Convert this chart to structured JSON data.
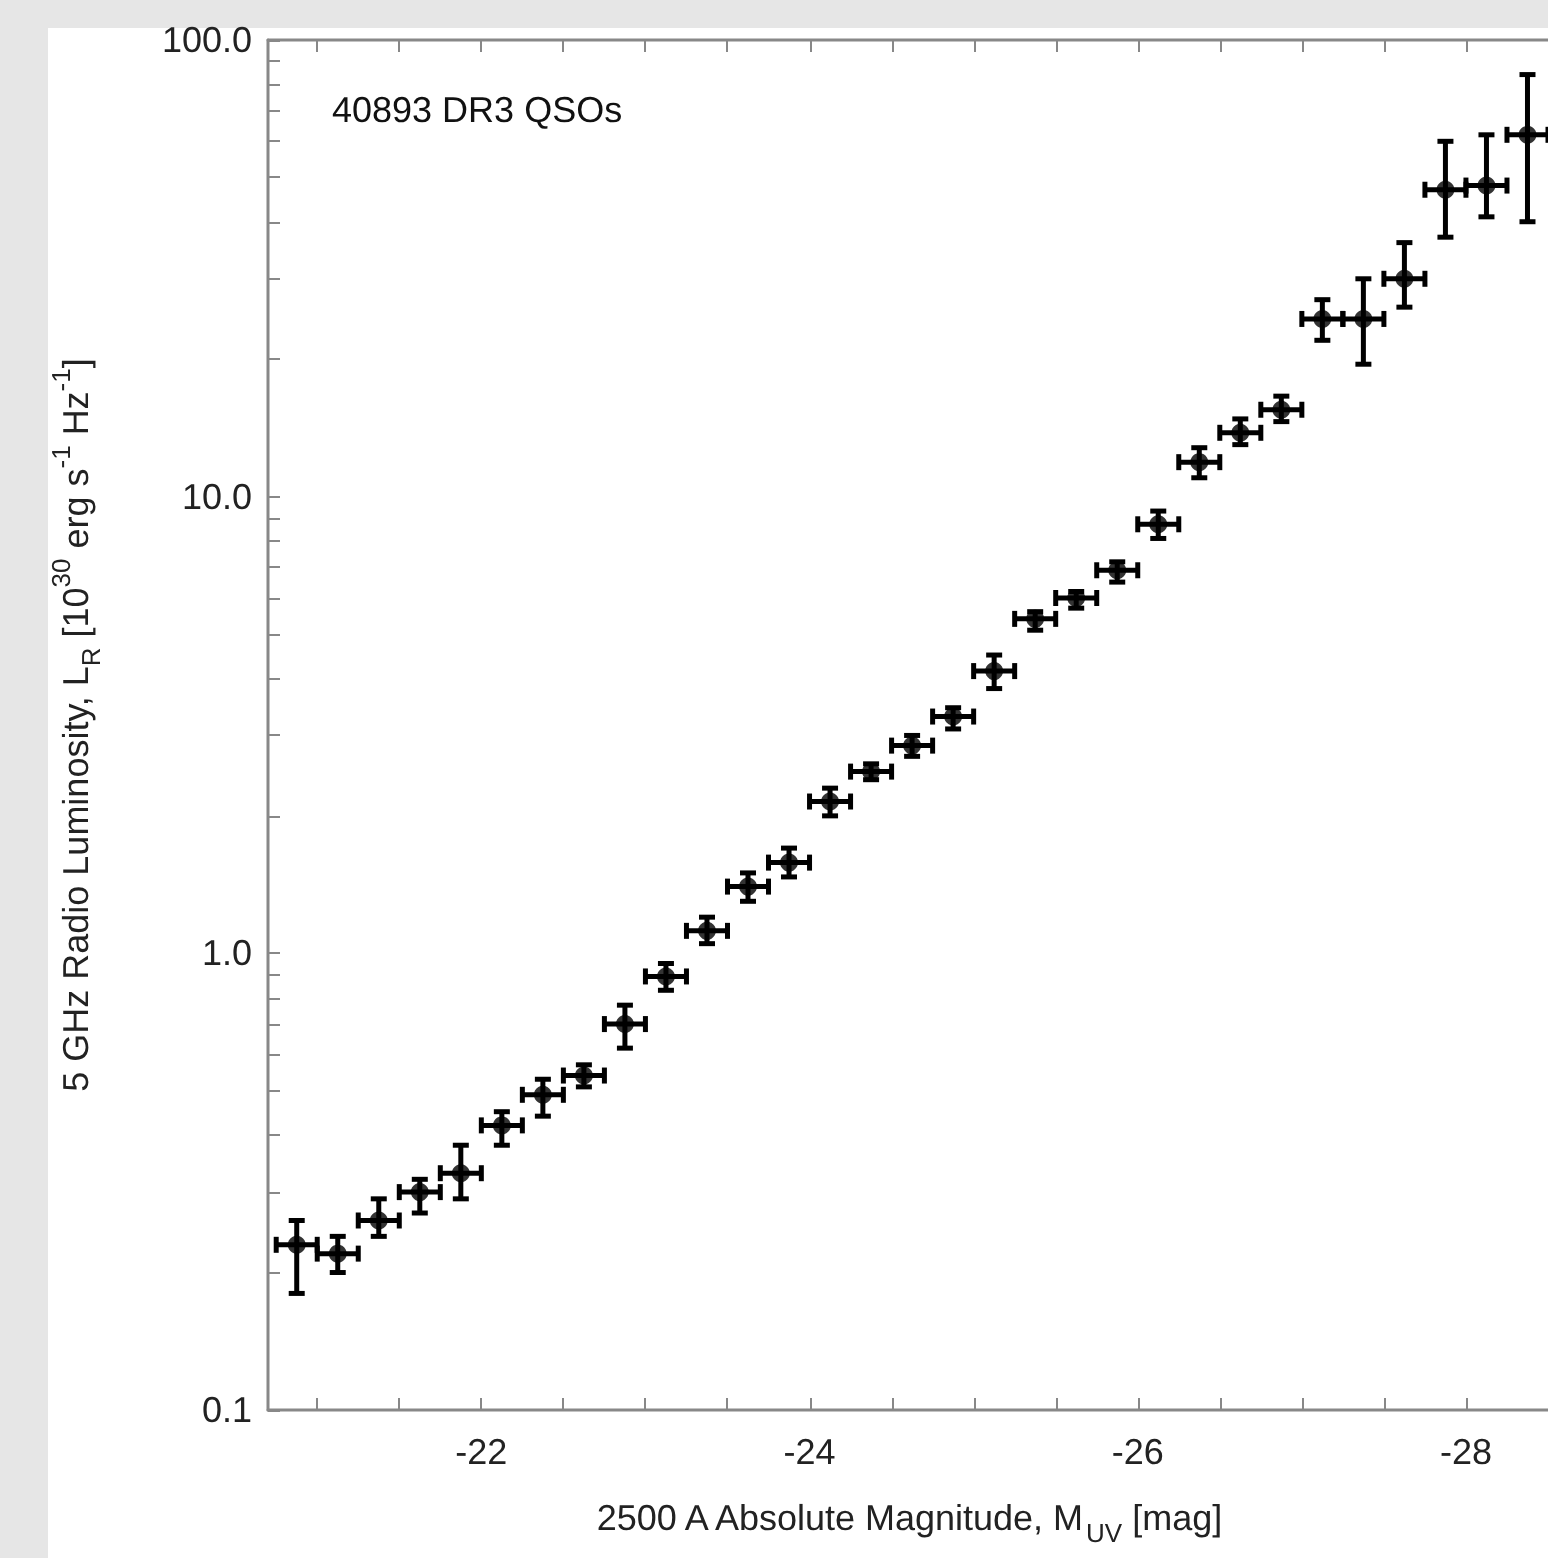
{
  "chart_data": {
    "type": "scatter",
    "xlabel": "2500 A Absolute Magnitude, M$_{UV}$ [mag]",
    "ylabel": "5 GHz Radio Luminosity, L$_{R}$ [10$^{30}$ erg s$^{-1}$ Hz$^{-1}$]",
    "annotations": [
      "40893 DR3 QSOs"
    ],
    "x": [
      -20.875,
      -21.125,
      -21.375,
      -21.625,
      -21.875,
      -22.125,
      -22.375,
      -22.625,
      -22.875,
      -23.125,
      -23.375,
      -23.625,
      -23.875,
      -24.125,
      -24.375,
      -24.625,
      -24.875,
      -25.125,
      -25.375,
      -25.625,
      -25.875,
      -26.125,
      -26.375,
      -26.625,
      -26.875,
      -27.125,
      -27.375,
      -27.625,
      -27.875,
      -28.125,
      -28.375
    ],
    "series": [
      {
        "color": "#000000",
        "values": [
          0.23,
          0.22,
          0.26,
          0.3,
          0.33,
          0.42,
          0.49,
          0.54,
          0.7,
          0.89,
          1.12,
          1.4,
          1.58,
          2.15,
          2.5,
          2.85,
          3.3,
          4.15,
          5.4,
          6.0,
          6.9,
          8.7,
          11.9,
          13.8,
          15.5,
          24.5,
          24.5,
          30,
          47,
          48,
          62
        ],
        "errors": [
          [
            0.18,
            0.26
          ],
          [
            0.2,
            0.24
          ],
          [
            0.24,
            0.29
          ],
          [
            0.27,
            0.32
          ],
          [
            0.29,
            0.38
          ],
          [
            0.38,
            0.45
          ],
          [
            0.44,
            0.53
          ],
          [
            0.51,
            0.57
          ],
          [
            0.62,
            0.77
          ],
          [
            0.83,
            0.95
          ],
          [
            1.05,
            1.2
          ],
          [
            1.3,
            1.5
          ],
          [
            1.47,
            1.7
          ],
          [
            2.0,
            2.3
          ],
          [
            2.4,
            2.6
          ],
          [
            2.7,
            3.0
          ],
          [
            3.1,
            3.45
          ],
          [
            3.8,
            4.5
          ],
          [
            5.1,
            5.6
          ],
          [
            5.7,
            6.2
          ],
          [
            6.5,
            7.2
          ],
          [
            8.1,
            9.3
          ],
          [
            11.0,
            12.8
          ],
          [
            13.0,
            14.8
          ],
          [
            14.6,
            16.6
          ],
          [
            22,
            27
          ],
          [
            19.5,
            30
          ],
          [
            26,
            36
          ],
          [
            37,
            60
          ],
          [
            41,
            62
          ],
          [
            40,
            84
          ]
        ],
        "xerrors": [
          0.125,
          0.125,
          0.125,
          0.125,
          0.125,
          0.125,
          0.125,
          0.125,
          0.125,
          0.125,
          0.125,
          0.125,
          0.125,
          0.125,
          0.125,
          0.125,
          0.125,
          0.125,
          0.125,
          0.125,
          0.125,
          0.125,
          0.125,
          0.125,
          0.125,
          0.125,
          0.125,
          0.125,
          0.125,
          0.125,
          0.125
        ]
      }
    ],
    "xlim": [
      -20.7,
      -28.5
    ],
    "xticks": [
      {
        "value": -21,
        "label": null
      },
      {
        "value": -21.5,
        "label": null
      },
      -22,
      {
        "value": -22.5,
        "label": null
      },
      {
        "value": -23,
        "label": null
      },
      {
        "value": -23.5,
        "label": null
      },
      -24,
      {
        "value": -24.5,
        "label": null
      },
      {
        "value": -25,
        "label": null
      },
      {
        "value": -25.5,
        "label": null
      },
      -26,
      {
        "value": -26.5,
        "label": null
      },
      {
        "value": -27,
        "label": null
      },
      {
        "value": -27.5,
        "label": null
      },
      -28
    ],
    "ylim": [
      0.1,
      100
    ],
    "yticks": [
      {
        "value": 0.1,
        "label": "0.1"
      },
      {
        "value": 0.2,
        "label": null
      },
      {
        "value": 0.3,
        "label": null
      },
      {
        "value": 0.4,
        "label": null
      },
      {
        "value": 0.5,
        "label": null
      },
      {
        "value": 0.6,
        "label": null
      },
      {
        "value": 0.7,
        "label": null
      },
      {
        "value": 0.8,
        "label": null
      },
      {
        "value": 0.9,
        "label": null
      },
      {
        "value": 1,
        "label": "1.0"
      },
      {
        "value": 2,
        "label": null
      },
      {
        "value": 3,
        "label": null
      },
      {
        "value": 4,
        "label": null
      },
      {
        "value": 5,
        "label": null
      },
      {
        "value": 6,
        "label": null
      },
      {
        "value": 7,
        "label": null
      },
      {
        "value": 8,
        "label": null
      },
      {
        "value": 9,
        "label": null
      },
      {
        "value": 10,
        "label": "10.0"
      },
      {
        "value": 20,
        "label": null
      },
      {
        "value": 30,
        "label": null
      },
      {
        "value": 40,
        "label": null
      },
      {
        "value": 50,
        "label": null
      },
      {
        "value": 60,
        "label": null
      },
      {
        "value": 70,
        "label": null
      },
      {
        "value": 80,
        "label": null
      },
      {
        "value": 90,
        "label": null
      },
      {
        "value": 100,
        "label": "100.0"
      }
    ],
    "log": "y",
    "marker": "circle",
    "grid": false
  }
}
